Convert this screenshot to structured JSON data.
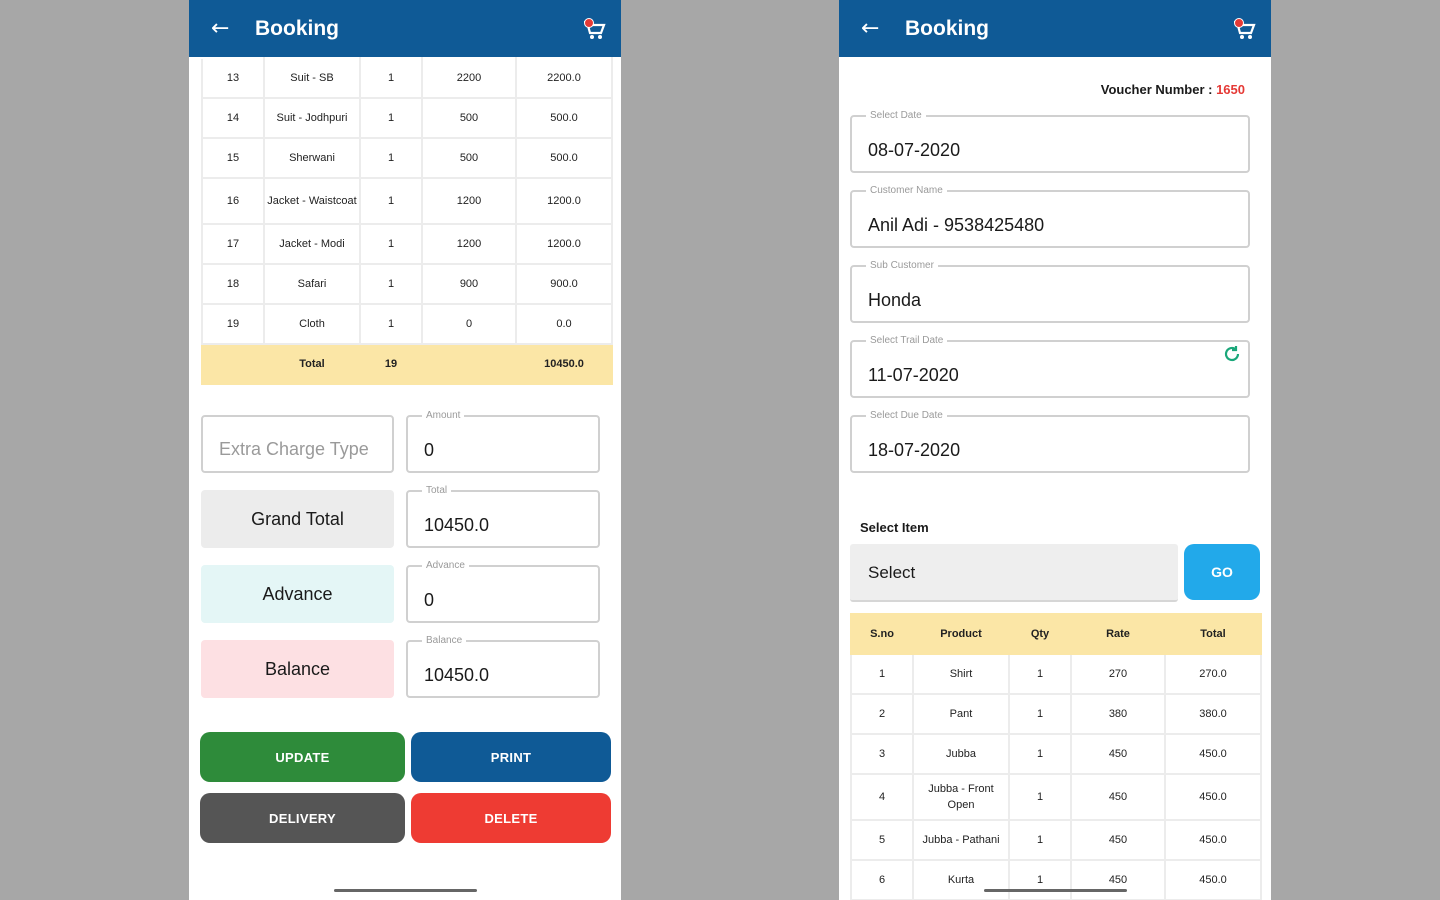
{
  "left": {
    "appbar": {
      "title": "Booking"
    },
    "table": {
      "rows": [
        {
          "sno": "13",
          "product": "Suit - SB",
          "qty": "1",
          "rate": "2200",
          "total": "2200.0"
        },
        {
          "sno": "14",
          "product": "Suit - Jodhpuri",
          "qty": "1",
          "rate": "500",
          "total": "500.0"
        },
        {
          "sno": "15",
          "product": "Sherwani",
          "qty": "1",
          "rate": "500",
          "total": "500.0"
        },
        {
          "sno": "16",
          "product": "Jacket - Waistcoat",
          "qty": "1",
          "rate": "1200",
          "total": "1200.0"
        },
        {
          "sno": "17",
          "product": "Jacket - Modi",
          "qty": "1",
          "rate": "1200",
          "total": "1200.0"
        },
        {
          "sno": "18",
          "product": "Safari",
          "qty": "1",
          "rate": "900",
          "total": "900.0"
        },
        {
          "sno": "19",
          "product": "Cloth",
          "qty": "1",
          "rate": "0",
          "total": "0.0"
        }
      ],
      "total_row": {
        "label": "Total",
        "qty": "19",
        "total": "10450.0"
      }
    },
    "extra_charge_placeholder": "Extra Charge Type",
    "amount": {
      "label": "Amount",
      "value": "0"
    },
    "grand_total": {
      "label": "Grand Total",
      "field_label": "Total",
      "value": "10450.0"
    },
    "advance": {
      "label": "Advance",
      "field_label": "Advance",
      "value": "0"
    },
    "balance": {
      "label": "Balance",
      "field_label": "Balance",
      "value": "10450.0"
    },
    "buttons": {
      "update": "UPDATE",
      "print": "PRINT",
      "delivery": "DELIVERY",
      "delete": "DELETE"
    }
  },
  "right": {
    "appbar": {
      "title": "Booking"
    },
    "voucher": {
      "label": "Voucher Number : ",
      "number": "1650"
    },
    "fields": {
      "date": {
        "label": "Select Date",
        "value": "08-07-2020"
      },
      "customer": {
        "label": "Customer Name",
        "value": "Anil Adi - 9538425480"
      },
      "sub_customer": {
        "label": "Sub Customer",
        "value": "Honda"
      },
      "trail_date": {
        "label": "Select Trail Date",
        "value": "11-07-2020"
      },
      "due_date": {
        "label": "Select Due Date",
        "value": "18-07-2020"
      }
    },
    "select_item": {
      "label": "Select Item",
      "value": "Select",
      "go": "GO"
    },
    "table": {
      "headers": {
        "sno": "S.no",
        "product": "Product",
        "qty": "Qty",
        "rate": "Rate",
        "total": "Total"
      },
      "rows": [
        {
          "sno": "1",
          "product": "Shirt",
          "qty": "1",
          "rate": "270",
          "total": "270.0"
        },
        {
          "sno": "2",
          "product": "Pant",
          "qty": "1",
          "rate": "380",
          "total": "380.0"
        },
        {
          "sno": "3",
          "product": "Jubba",
          "qty": "1",
          "rate": "450",
          "total": "450.0"
        },
        {
          "sno": "4",
          "product": "Jubba - Front Open",
          "qty": "1",
          "rate": "450",
          "total": "450.0"
        },
        {
          "sno": "5",
          "product": "Jubba - Pathani",
          "qty": "1",
          "rate": "450",
          "total": "450.0"
        },
        {
          "sno": "6",
          "product": "Kurta",
          "qty": "1",
          "rate": "450",
          "total": "450.0"
        }
      ]
    }
  },
  "colors": {
    "appbar": "#0f5a96",
    "update": "#2e8b3a",
    "print": "#0f5a96",
    "delivery": "#555555",
    "delete": "#ee3b33",
    "go": "#22a9ea",
    "total_row": "#fbe6a6"
  }
}
